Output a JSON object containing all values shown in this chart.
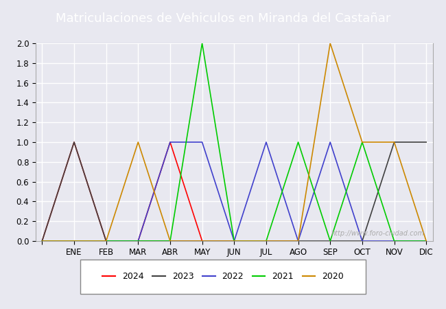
{
  "title": "Matriculaciones de Vehiculos en Miranda del Castañar",
  "months": [
    "",
    "ENE",
    "FEB",
    "MAR",
    "ABR",
    "MAY",
    "JUN",
    "JUL",
    "AGO",
    "SEP",
    "OCT",
    "NOV",
    "DIC"
  ],
  "series": {
    "2024": {
      "color": "#ff0000",
      "data": {
        "0": 0,
        "1": 1,
        "2": 0,
        "3": 0,
        "4": 1,
        "5": 0,
        "6": null,
        "7": null,
        "8": null,
        "9": null,
        "10": null,
        "11": null,
        "12": null
      }
    },
    "2023": {
      "color": "#404040",
      "data": {
        "0": 0,
        "1": 1,
        "2": 0,
        "3": 0,
        "4": 0,
        "5": 0,
        "6": 0,
        "7": 0,
        "8": 0,
        "9": 0,
        "10": 0,
        "11": 1,
        "12": 1
      }
    },
    "2022": {
      "color": "#4040cc",
      "data": {
        "0": 0,
        "1": 0,
        "2": 0,
        "3": 0,
        "4": 1,
        "5": 1,
        "6": 0,
        "7": 1,
        "8": 0,
        "9": 1,
        "10": 0,
        "11": 0,
        "12": 0
      }
    },
    "2021": {
      "color": "#00cc00",
      "data": {
        "0": 0,
        "1": 0,
        "2": 0,
        "3": 0,
        "4": 0,
        "5": 2,
        "6": 0,
        "7": 0,
        "8": 1,
        "9": 0,
        "10": 1,
        "11": 0,
        "12": 0
      }
    },
    "2020": {
      "color": "#cc8800",
      "data": {
        "0": 0,
        "1": 0,
        "2": 0,
        "3": 1,
        "4": 0,
        "5": 0,
        "6": 0,
        "7": 0,
        "8": 0,
        "9": 2,
        "10": 1,
        "11": 1,
        "12": 0
      }
    }
  },
  "ylim": [
    0,
    2.0
  ],
  "yticks": [
    0.0,
    0.2,
    0.4,
    0.6,
    0.8,
    1.0,
    1.2,
    1.4,
    1.6,
    1.8,
    2.0
  ],
  "background_color": "#e8e8f0",
  "plot_bg_color": "#e8e8f0",
  "title_bg_color": "#4488cc",
  "title_color": "#ffffff",
  "grid_color": "#ffffff",
  "watermark": "http://www.foro-ciudad.com",
  "legend_order": [
    "2024",
    "2023",
    "2022",
    "2021",
    "2020"
  ]
}
